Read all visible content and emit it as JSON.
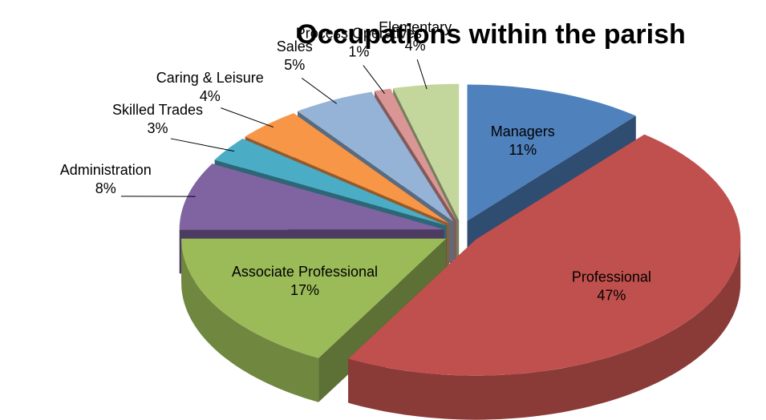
{
  "chart_data": {
    "type": "pie",
    "title": "Occupations within the parish",
    "categories": [
      "Managers",
      "Professional",
      "Associate Professional",
      "Administration",
      "Skilled Trades",
      "Caring & Leisure",
      "Sales",
      "Process Operatives",
      "Elementary"
    ],
    "values": [
      11,
      47,
      17,
      8,
      3,
      4,
      5,
      1,
      4
    ],
    "value_labels": [
      "11%",
      "47%",
      "17%",
      "8%",
      "3%",
      "4%",
      "5%",
      "1%",
      "4%"
    ],
    "colors": [
      "#4f81bd",
      "#c0504d",
      "#9bbb59",
      "#8064a2",
      "#4bacc6",
      "#f79646",
      "#95b3d7",
      "#d99694",
      "#c3d69b"
    ]
  }
}
